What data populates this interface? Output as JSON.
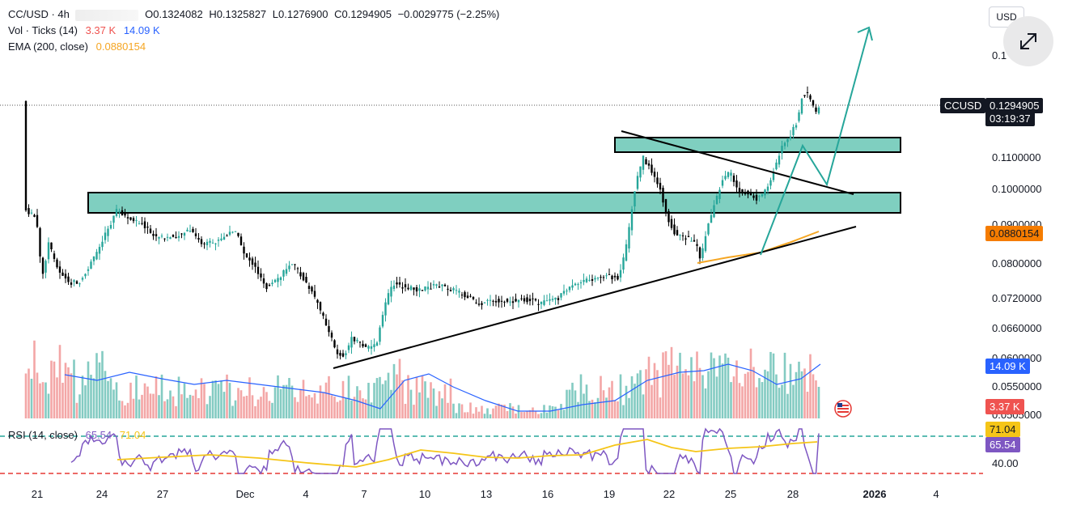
{
  "header": {
    "symbol": "CC/USD · 4h",
    "open": "O0.1324082",
    "high": "H0.1325827",
    "low": "L0.1276900",
    "close": "C0.1294905",
    "change": "−0.0029775 (−2.25%)",
    "vol_label": "Vol · Ticks (14)",
    "vol_value1": "3.37 K",
    "vol_value2": "14.09 K",
    "ema_label": "EMA (200, close)",
    "ema_value": "0.0880154"
  },
  "currency_button": "USD",
  "price_axis": {
    "ticks": [
      "0.1100000",
      "0.1000000",
      "0.0800000",
      "0.0720000",
      "0.0660000",
      "0.0550000"
    ],
    "partial_top": "0.1",
    "partial_090": "0.0900000",
    "partial_060": "0.0600000",
    "partial_050": "0.0505000"
  },
  "tags": {
    "symbol_tag": "CCUSD",
    "last_price": "0.1294905",
    "countdown": "03:19:37",
    "ema": "0.0880154",
    "vol_ma": "14.09 K",
    "vol_last": "3.37 K",
    "rsi_ma": "71.04",
    "rsi": "65.54",
    "rsi_tick": "40.00"
  },
  "rsi_legend": {
    "label": "RSI (14, close)",
    "value": "65.54",
    "ma": "71.04"
  },
  "time_axis": [
    "21",
    "24",
    "27",
    "Dec",
    "4",
    "7",
    "10",
    "13",
    "16",
    "19",
    "22",
    "25",
    "28",
    "2026",
    "4"
  ],
  "colors": {
    "up": "#26a69a",
    "down": "#000000",
    "vol_up": "#83cbc2",
    "vol_down": "#f3a6a6",
    "zone": "#7fcfc0",
    "ema": "#f5a623",
    "vol_ma": "#2962ff",
    "rsi": "#7e57c2",
    "rsi_ma": "#f5c518"
  }
}
